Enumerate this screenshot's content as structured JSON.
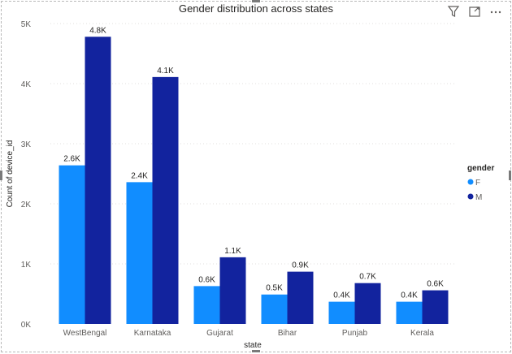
{
  "chart_data": {
    "type": "bar",
    "title": "Gender distribution across states",
    "xlabel": "state",
    "ylabel": "Count of device_id",
    "categories": [
      "WestBengal",
      "Karnataka",
      "Gujarat",
      "Bihar",
      "Punjab",
      "Kerala"
    ],
    "series": [
      {
        "name": "F",
        "values": [
          2640,
          2360,
          630,
          490,
          370,
          370
        ],
        "labels": [
          "2.6K",
          "2.4K",
          "0.6K",
          "0.5K",
          "0.4K",
          "0.4K"
        ],
        "color": "#118dff"
      },
      {
        "name": "M",
        "values": [
          4780,
          4110,
          1110,
          870,
          680,
          560
        ],
        "labels": [
          "4.8K",
          "4.1K",
          "1.1K",
          "0.9K",
          "0.7K",
          "0.6K"
        ],
        "color": "#12239e"
      }
    ],
    "ylim": [
      0,
      5000
    ],
    "yticks": [
      0,
      1000,
      2000,
      3000,
      4000,
      5000
    ],
    "ytick_labels": [
      "0K",
      "1K",
      "2K",
      "3K",
      "4K",
      "5K"
    ],
    "grid": true,
    "legend": {
      "title": "gender",
      "position": "right"
    }
  },
  "icons": {
    "filter": "filter-icon",
    "focus": "focus-mode-icon",
    "more": "more-options-icon"
  }
}
